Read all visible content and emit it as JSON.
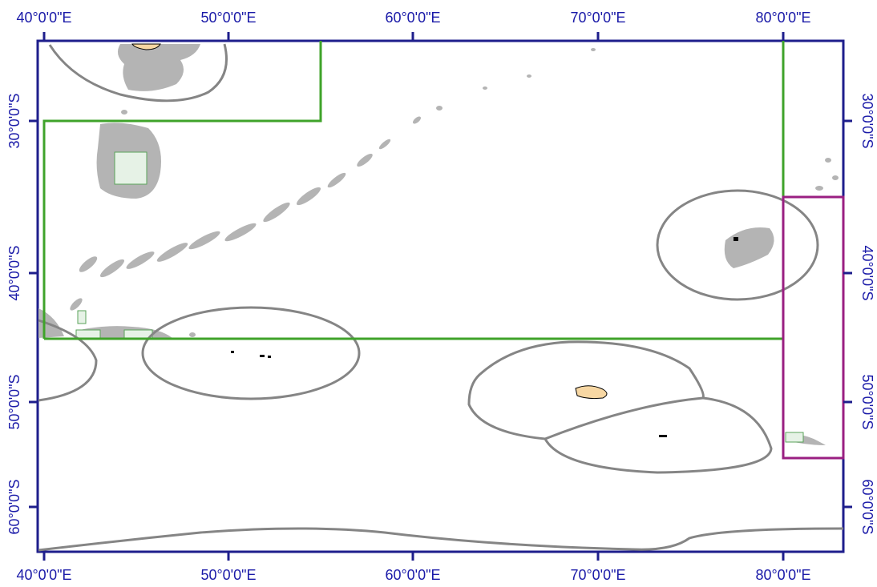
{
  "map": {
    "colors": {
      "frame": "#1e1e8c",
      "tick_text": "#1a1aa8",
      "grey_boundary": "#858585",
      "green_box": "#3fa32a",
      "purple_box": "#9a1f82",
      "bathymetry_grey": "#b4b4b4",
      "land_tan": "#f7d7a3",
      "grid_cell_green": "#5aa35a"
    },
    "top_axis": [
      "40°0'0\"E",
      "50°0'0\"E",
      "60°0'0\"E",
      "70°0'0\"E",
      "80°0'0\"E"
    ],
    "bottom_axis": [
      "40°0'0\"E",
      "50°0'0\"E",
      "60°0'0\"E",
      "70°0'0\"E",
      "80°0'0\"E"
    ],
    "right_axis": [
      "30°0'0\"S",
      "40°0'0\"S",
      "50°0'0\"S",
      "60°0'0\"S"
    ],
    "left_axis": [
      "30°0'0\"S",
      "40°0'0\"S",
      "50°0'0\"S",
      "60°0'0\"S"
    ]
  }
}
